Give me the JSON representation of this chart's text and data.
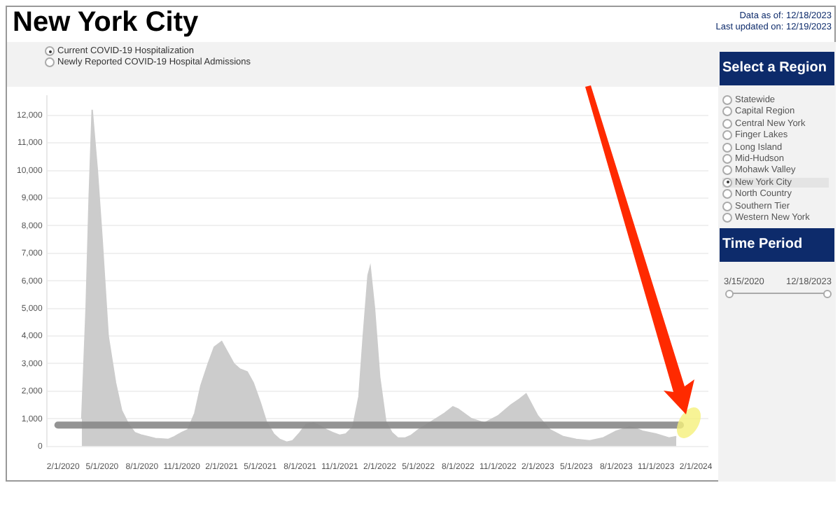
{
  "chart_data": {
    "type": "area",
    "title": "New York City",
    "annotations": [
      "Data as of: 12/18/2023",
      "Last updated on: 12/19/2023",
      "Current COVID-19 Hospitalization",
      "Newly Reported COVID-19 Hospital Admissions",
      "Select a Region",
      "Statewide",
      "Capital Region",
      "Central New York",
      "Finger Lakes",
      "Long Island",
      "Mid-Hudson",
      "Mohawk Valley",
      "New York City",
      "North Country",
      "Southern Tier",
      "Western New York",
      "Time Period",
      "3/15/2020",
      "12/18/2023"
    ],
    "x": [
      "2020-03-15",
      "2020-03-25",
      "2020-04-01",
      "2020-04-08",
      "2020-04-20",
      "2020-05-01",
      "2020-05-15",
      "2020-06-01",
      "2020-06-15",
      "2020-07-01",
      "2020-07-15",
      "2020-08-01",
      "2020-09-01",
      "2020-10-01",
      "2020-10-15",
      "2020-11-01",
      "2020-11-15",
      "2020-12-01",
      "2020-12-15",
      "2021-01-01",
      "2021-01-15",
      "2021-02-01",
      "2021-02-15",
      "2021-03-01",
      "2021-03-15",
      "2021-04-01",
      "2021-04-15",
      "2021-05-01",
      "2021-05-15",
      "2021-06-01",
      "2021-06-15",
      "2021-07-01",
      "2021-07-15",
      "2021-08-01",
      "2021-08-15",
      "2021-09-01",
      "2021-09-15",
      "2021-10-01",
      "2021-10-15",
      "2021-11-01",
      "2021-11-15",
      "2021-12-01",
      "2021-12-15",
      "2021-12-25",
      "2022-01-05",
      "2022-01-10",
      "2022-01-20",
      "2022-02-01",
      "2022-02-15",
      "2022-03-01",
      "2022-03-15",
      "2022-04-01",
      "2022-04-15",
      "2022-05-01",
      "2022-06-01",
      "2022-07-01",
      "2022-07-20",
      "2022-08-01",
      "2022-09-01",
      "2022-10-01",
      "2022-11-01",
      "2022-12-01",
      "2022-12-20",
      "2023-01-05",
      "2023-01-15",
      "2023-02-01",
      "2023-03-01",
      "2023-04-01",
      "2023-05-01",
      "2023-06-01",
      "2023-07-01",
      "2023-08-01",
      "2023-09-01",
      "2023-09-15",
      "2023-10-01",
      "2023-11-01",
      "2023-12-01",
      "2023-12-18"
    ],
    "values": [
      1000,
      5000,
      9000,
      12200,
      10000,
      7500,
      4000,
      2300,
      1300,
      800,
      500,
      400,
      280,
      250,
      350,
      500,
      600,
      1200,
      2200,
      3000,
      3600,
      3800,
      3400,
      3000,
      2800,
      2700,
      2300,
      1600,
      900,
      450,
      250,
      150,
      200,
      500,
      800,
      850,
      750,
      600,
      500,
      400,
      450,
      700,
      1800,
      4000,
      6200,
      6500,
      5000,
      2500,
      900,
      500,
      300,
      300,
      400,
      600,
      900,
      1200,
      1430,
      1350,
      1000,
      850,
      1100,
      1500,
      1700,
      1900,
      1600,
      1100,
      600,
      350,
      250,
      200,
      300,
      550,
      700,
      650,
      550,
      450,
      300,
      350
    ],
    "color": "#cccccc",
    "xlim": [
      "2019-12-25",
      "2024-03-01"
    ],
    "xticks": [
      {
        "value": "2020-02-01",
        "label": "2/1/2020"
      },
      {
        "value": "2020-05-01",
        "label": "5/1/2020"
      },
      {
        "value": "2020-08-01",
        "label": "8/1/2020"
      },
      {
        "value": "2020-11-01",
        "label": "11/1/2020"
      },
      {
        "value": "2021-02-01",
        "label": "2/1/2021"
      },
      {
        "value": "2021-05-01",
        "label": "5/1/2021"
      },
      {
        "value": "2021-08-01",
        "label": "8/1/2021"
      },
      {
        "value": "2021-11-01",
        "label": "11/1/2021"
      },
      {
        "value": "2022-02-01",
        "label": "2/1/2022"
      },
      {
        "value": "2022-05-01",
        "label": "5/1/2022"
      },
      {
        "value": "2022-08-01",
        "label": "8/1/2022"
      },
      {
        "value": "2022-11-01",
        "label": "11/1/2022"
      },
      {
        "value": "2023-02-01",
        "label": "2/1/2023"
      },
      {
        "value": "2023-05-01",
        "label": "5/1/2023"
      },
      {
        "value": "2023-08-01",
        "label": "8/1/2023"
      },
      {
        "value": "2023-11-01",
        "label": "11/1/2023"
      },
      {
        "value": "2024-02-01",
        "label": "2/1/2024"
      }
    ],
    "ylim": [
      0,
      12700
    ],
    "yticks": [
      0,
      {
        "value": 1000,
        "label": "1,000"
      },
      {
        "value": 2000,
        "label": "2,000"
      },
      {
        "value": 3000,
        "label": "3,000"
      },
      {
        "value": 4000,
        "label": "4,000"
      },
      {
        "value": 5000,
        "label": "5,000"
      },
      {
        "value": 6000,
        "label": "6,000"
      },
      {
        "value": 7000,
        "label": "7,000"
      },
      {
        "value": 8000,
        "label": "8,000"
      },
      {
        "value": 9000,
        "label": "9,000"
      },
      {
        "value": 10000,
        "label": "10,000"
      },
      {
        "value": 11000,
        "label": "11,000"
      },
      {
        "value": 12000,
        "label": "12,000"
      }
    ],
    "ref_lines": [
      {
        "axis": "y",
        "value": 770,
        "color": "#888888"
      }
    ],
    "grid": "y",
    "legend": false
  }
}
